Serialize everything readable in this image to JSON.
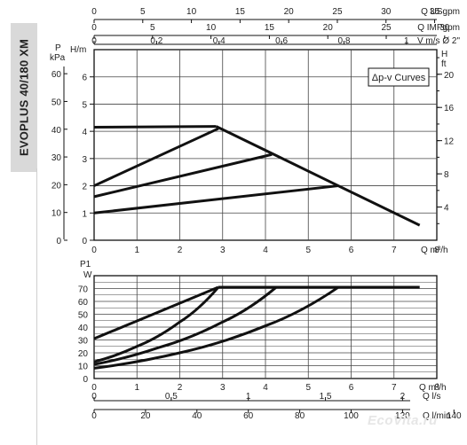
{
  "model_title": "EVOPLUS 40/180 XM",
  "watermark": "EcoVita.ru",
  "chart_data": [
    {
      "id": "head",
      "type": "line",
      "legend_box": "Δp-v Curves",
      "legend_placement": "top-right",
      "grid": true,
      "x_axis": {
        "label": "Q m³/h",
        "range": [
          0,
          8
        ],
        "ticks": [
          0,
          1,
          2,
          3,
          4,
          5,
          6,
          7,
          8
        ]
      },
      "y_axis": {
        "label": "H/m",
        "range": [
          0,
          7
        ],
        "ticks": [
          0,
          1,
          2,
          3,
          4,
          5,
          6
        ]
      },
      "y_axis_kpa": {
        "label": "P kPa",
        "ticks": [
          0,
          10,
          20,
          30,
          40,
          50,
          60
        ]
      },
      "y_axis_ft": {
        "label": "H ft",
        "ticks": [
          4,
          8,
          12,
          16,
          20
        ],
        "factor": 3.2808
      },
      "top_axes": [
        {
          "label": "Q USgpm",
          "factor": 4.4029,
          "ticks": [
            0,
            5,
            10,
            15,
            20,
            25,
            30,
            35
          ]
        },
        {
          "label": "Q IMPgpm",
          "factor": 3.6662,
          "ticks": [
            0,
            5,
            10,
            15,
            20,
            25,
            30
          ]
        },
        {
          "label": "V m/s Ø 2\"",
          "factor": 0.13714,
          "ticks": [
            "0",
            "0,2",
            "0,4",
            "0,6",
            "0,8",
            "1"
          ]
        }
      ],
      "series": [
        {
          "x": [
            0,
            2.85
          ],
          "y": [
            4.15,
            4.18
          ]
        },
        {
          "x": [
            0,
            2.9
          ],
          "y": [
            2.0,
            4.1
          ]
        },
        {
          "x": [
            0,
            4.15
          ],
          "y": [
            1.6,
            3.15
          ]
        },
        {
          "x": [
            0,
            5.7
          ],
          "y": [
            1.0,
            2.0
          ]
        },
        {
          "x": [
            2.85,
            4.2,
            5.7,
            7.6
          ],
          "y": [
            4.18,
            3.15,
            2.0,
            0.55
          ]
        }
      ]
    },
    {
      "id": "power",
      "type": "line",
      "grid": true,
      "x_axis": {
        "label": "Q m³/h",
        "range": [
          0,
          8
        ],
        "ticks": [
          0,
          1,
          2,
          3,
          4,
          5,
          6,
          7,
          8
        ]
      },
      "y_axis": {
        "label": "P1 W",
        "range": [
          0,
          80
        ],
        "ticks": [
          0,
          10,
          20,
          30,
          40,
          50,
          60,
          70
        ]
      },
      "bottom_axes": [
        {
          "label": "Q l/s",
          "factor": 0.27778,
          "ticks": [
            "0",
            "0,5",
            "1",
            "1,5",
            "2"
          ]
        },
        {
          "label": "Q l/min",
          "factor": 16.667,
          "ticks": [
            0,
            20,
            40,
            60,
            80,
            100,
            120,
            140
          ]
        }
      ],
      "series": [
        {
          "x": [
            0,
            2.9
          ],
          "y": [
            31,
            71
          ]
        },
        {
          "x": [
            0,
            1.0,
            2.0,
            2.9
          ],
          "y": [
            13,
            25,
            44,
            71
          ]
        },
        {
          "x": [
            0,
            1.5,
            3.0,
            4.25
          ],
          "y": [
            11,
            24,
            44,
            71
          ]
        },
        {
          "x": [
            0,
            2.0,
            4.0,
            5.7
          ],
          "y": [
            8,
            20,
            41,
            71
          ]
        },
        {
          "x": [
            2.9,
            5.7,
            7.6
          ],
          "y": [
            71,
            71,
            71
          ]
        }
      ]
    }
  ]
}
